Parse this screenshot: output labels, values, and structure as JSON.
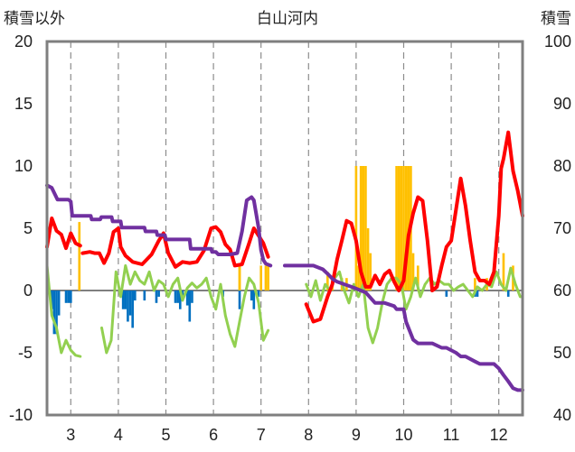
{
  "chart_data": {
    "type": "line",
    "title": "白山河内",
    "ylabel_left": "積雪以外",
    "ylabel_right": "積雪",
    "xlabel": "",
    "x_range": [
      2.5,
      12.5
    ],
    "categories": [
      "3",
      "4",
      "5",
      "6",
      "7",
      "8",
      "9",
      "10",
      "11",
      "12"
    ],
    "y_left_range": [
      -10,
      20
    ],
    "y_left_ticks": [
      "20",
      "15",
      "10",
      "5",
      "0",
      "-5",
      "-10"
    ],
    "y_right_range": [
      40,
      100
    ],
    "y_right_ticks": [
      "100",
      "90",
      "80",
      "70",
      "60",
      "50",
      "40"
    ],
    "grid": "vertical dashed at each month, horizontal line at 0",
    "colors": {
      "red": "#ff0000",
      "green": "#92d050",
      "purple": "#7030a0",
      "orange": "#ffc000",
      "blue": "#0070c0",
      "frame": "#7f7f7f"
    },
    "series": [
      {
        "color": "red",
        "axis": "left",
        "x": [
          2.5,
          2.6,
          2.7,
          2.8,
          2.9,
          3.0,
          3.1,
          3.2,
          null,
          3.25,
          3.4,
          3.5,
          3.6,
          3.7,
          3.8,
          3.9,
          4.0,
          4.05,
          4.15,
          4.3,
          4.5,
          4.7,
          4.85,
          4.95,
          5.05,
          5.2,
          5.35,
          5.5,
          5.65,
          5.8,
          5.95,
          6.05,
          6.15,
          6.25,
          6.35,
          6.45,
          6.6,
          6.75,
          6.85,
          6.95,
          7.05,
          7.15,
          null,
          7.95,
          8.1,
          8.25,
          8.4,
          8.5,
          8.6,
          8.7,
          8.8,
          8.9,
          9.0,
          9.1,
          9.2,
          9.3,
          9.4,
          9.5,
          9.6,
          9.7,
          9.8,
          9.9,
          10.0,
          10.1,
          10.2,
          10.3,
          10.4,
          10.5,
          10.6,
          10.7,
          10.8,
          10.9,
          11.0,
          11.1,
          11.2,
          11.3,
          11.4,
          11.5,
          11.6,
          11.7,
          11.8,
          11.9,
          12.0,
          12.05,
          12.1,
          12.2,
          12.3,
          12.4,
          12.5
        ],
        "y": [
          3.5,
          5.8,
          4.8,
          4.5,
          3.4,
          4.6,
          3.8,
          3.6,
          null,
          3.0,
          3.1,
          3.0,
          3.0,
          2.2,
          3.0,
          4.7,
          5.0,
          3.5,
          2.8,
          2.3,
          2.1,
          2.9,
          4.0,
          4.6,
          3.0,
          1.9,
          2.3,
          2.2,
          2.3,
          3.2,
          5.0,
          5.1,
          4.7,
          3.7,
          3.3,
          2.0,
          2.1,
          3.8,
          5.0,
          4.4,
          3.8,
          2.7,
          null,
          -1.1,
          -2.5,
          -2.3,
          -0.5,
          0.5,
          2.5,
          4.0,
          5.6,
          5.4,
          4.0,
          1.5,
          0.3,
          0.3,
          1.2,
          0.5,
          1.3,
          1.6,
          0.7,
          0.0,
          0.8,
          4.4,
          6.2,
          7.5,
          7.2,
          4.0,
          0.0,
          0.3,
          2.0,
          3.5,
          4.0,
          6.5,
          9.0,
          6.8,
          4.0,
          1.5,
          0.8,
          0.8,
          0.5,
          1.5,
          6.0,
          9.8,
          10.6,
          12.7,
          9.6,
          8.0,
          6.0
        ]
      },
      {
        "color": "green",
        "axis": "left",
        "x": [
          2.5,
          2.6,
          2.7,
          2.8,
          2.9,
          3.0,
          3.1,
          3.2,
          null,
          3.65,
          3.75,
          3.85,
          3.95,
          4.05,
          4.15,
          4.25,
          4.35,
          4.45,
          4.55,
          4.65,
          4.75,
          4.85,
          4.95,
          5.05,
          5.15,
          5.25,
          5.35,
          5.45,
          5.55,
          5.65,
          5.75,
          5.85,
          5.95,
          6.05,
          6.15,
          6.25,
          6.35,
          6.45,
          6.55,
          6.65,
          6.75,
          6.85,
          6.95,
          7.05,
          7.15,
          null,
          7.95,
          8.05,
          8.15,
          8.25,
          8.35,
          8.45,
          8.55,
          8.65,
          8.75,
          8.85,
          8.95,
          9.05,
          9.15,
          9.25,
          9.35,
          9.45,
          9.55,
          9.65,
          9.75,
          9.85,
          9.95,
          10.05,
          10.15,
          10.25,
          10.35,
          10.45,
          10.55,
          10.65,
          10.75,
          10.85,
          10.95,
          11.05,
          11.15,
          11.25,
          11.35,
          11.45,
          11.55,
          11.65,
          11.75,
          11.85,
          11.95,
          12.05,
          12.15,
          12.25,
          12.35,
          12.45,
          12.5
        ],
        "y": [
          2.0,
          -2.0,
          -3.0,
          -5.0,
          -4.0,
          -4.8,
          -5.2,
          -5.3,
          null,
          -3.0,
          -5.0,
          -4.0,
          1.5,
          -0.5,
          2.0,
          0.5,
          1.5,
          0.8,
          0.5,
          1.5,
          0.0,
          0.8,
          0.5,
          -0.5,
          0.5,
          1.0,
          -0.8,
          0.2,
          0.6,
          0.2,
          0.5,
          1.0,
          -0.5,
          -1.5,
          0.5,
          -2.0,
          -3.5,
          -4.5,
          -2.5,
          -0.5,
          1.0,
          0.5,
          -1.0,
          -4.0,
          -3.2,
          null,
          0.5,
          -0.5,
          0.8,
          -0.8,
          0.5,
          0.0,
          1.0,
          1.5,
          0.0,
          -1.0,
          0.5,
          -0.5,
          0.5,
          -3.0,
          -4.2,
          -3.0,
          -1.0,
          0.5,
          1.0,
          1.0,
          0.5,
          -1.5,
          -0.5,
          1.0,
          -0.5,
          0.5,
          1.0,
          0.5,
          0.8,
          0.5,
          0.5,
          0.0,
          0.3,
          0.5,
          0.0,
          -0.5,
          0.3,
          0.0,
          0.5,
          0.3,
          1.5,
          0.5,
          0.0,
          1.8,
          0.5,
          -0.5,
          -0.5
        ]
      },
      {
        "color": "purple",
        "axis": "right",
        "x": [
          2.5,
          2.6,
          2.72,
          2.95,
          3.0,
          3.03,
          3.2,
          3.42,
          3.44,
          3.62,
          3.64,
          3.86,
          3.88,
          4.05,
          4.07,
          4.55,
          4.57,
          4.8,
          4.82,
          4.98,
          5.0,
          5.5,
          5.52,
          5.95,
          5.97,
          6.05,
          6.1,
          6.35,
          6.5,
          6.6,
          6.7,
          6.8,
          6.85,
          6.95,
          7.0,
          7.05,
          7.1,
          7.2,
          null,
          7.5,
          8.1,
          8.3,
          8.4,
          8.5,
          8.6,
          8.75,
          8.9,
          9.0,
          9.2,
          9.4,
          9.6,
          9.8,
          9.85,
          10.0,
          10.05,
          10.2,
          10.3,
          10.6,
          10.8,
          10.9,
          11.1,
          11.2,
          11.3,
          11.5,
          11.6,
          11.9,
          12.0,
          12.1,
          12.2,
          12.3,
          12.4,
          12.5
        ],
        "y": [
          76.9,
          76.5,
          74.6,
          74.6,
          74.3,
          72.0,
          72.0,
          72.0,
          71.4,
          71.4,
          71.8,
          71.8,
          71.1,
          71.1,
          70.1,
          70.1,
          69.5,
          69.5,
          68.9,
          68.9,
          68.2,
          68.2,
          66.7,
          66.7,
          66.2,
          66.2,
          65.8,
          65.8,
          66.0,
          69.5,
          74.5,
          75.0,
          74.5,
          70.0,
          66.5,
          64.9,
          64.3,
          64.0,
          null,
          64.0,
          64.0,
          63.4,
          62.7,
          61.9,
          61.4,
          61.0,
          60.6,
          60.3,
          59.7,
          58.0,
          58.0,
          57.5,
          57.0,
          57.0,
          55.0,
          52.1,
          51.5,
          51.5,
          50.8,
          50.8,
          50.0,
          49.4,
          49.4,
          48.6,
          48.2,
          48.2,
          47.5,
          46.4,
          45.4,
          44.3,
          44.0,
          44.0
        ]
      }
    ],
    "bars": [
      {
        "color": "orange",
        "axis": "left",
        "x": [
          3.18,
          6.55,
          6.55,
          7.0,
          7.1,
          7.15,
          8.4,
          8.5,
          8.7,
          8.8,
          9.0,
          9.05,
          9.1,
          9.15,
          9.2,
          9.25,
          9.3,
          9.85,
          9.9,
          9.95,
          10.0,
          10.05,
          10.1,
          10.15,
          10.2,
          10.3,
          11.5,
          11.75,
          12.1,
          12.3
        ],
        "y": [
          5.5,
          2.0,
          2.0,
          2.0,
          2.0,
          2.0,
          1.5,
          1.0,
          1.0,
          1.0,
          10.0,
          2.0,
          10.0,
          10.0,
          10.0,
          5.0,
          3.0,
          10.0,
          10.0,
          10.0,
          10.0,
          10.0,
          10.0,
          10.0,
          3.0,
          2.0,
          1.0,
          1.0,
          3.0,
          2.0
        ]
      },
      {
        "color": "blue",
        "axis": "left",
        "x": [
          2.6,
          2.65,
          2.7,
          2.75,
          2.9,
          2.95,
          3.0,
          4.05,
          4.1,
          4.15,
          4.2,
          4.25,
          4.3,
          4.35,
          4.55,
          4.8,
          4.85,
          5.2,
          5.25,
          5.3,
          5.35,
          5.45,
          5.5,
          5.55,
          6.2,
          6.55,
          6.8,
          6.85,
          6.95,
          10.9,
          11.5,
          11.55,
          12.2
        ],
        "y": [
          -1.5,
          -3.5,
          -3.5,
          -2.0,
          -1.0,
          -1.0,
          -1.0,
          -0.5,
          -1.5,
          -1.5,
          -2.5,
          -2.0,
          -3.0,
          -0.8,
          -0.8,
          -1.0,
          -0.5,
          -1.0,
          -1.0,
          -1.5,
          -0.8,
          -1.2,
          -2.5,
          -1.0,
          -0.5,
          -1.5,
          -0.8,
          -1.5,
          -0.5,
          -0.5,
          -0.5,
          -0.5,
          -0.5
        ]
      }
    ]
  }
}
